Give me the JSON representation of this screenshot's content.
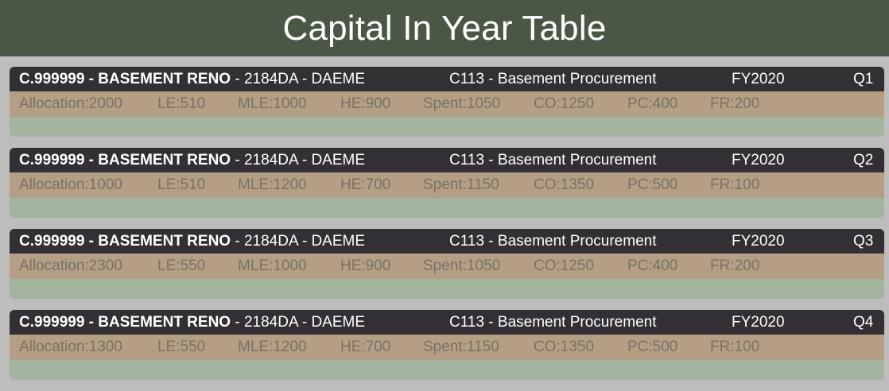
{
  "page": {
    "title": "Capital In Year Table"
  },
  "rows": [
    {
      "code": "C.999999 - BASEMENT RENO",
      "suffix": " - 2184DA - DAEME",
      "procurement": "C113 - Basement Procurement",
      "fy": "FY2020",
      "quarter": "Q1",
      "metrics": [
        "Allocation:2000",
        "LE:510",
        "MLE:1000",
        "HE:900",
        "Spent:1050",
        "CO:1250",
        "PC:400",
        "FR:200"
      ]
    },
    {
      "code": "C.999999 - BASEMENT RENO",
      "suffix": " - 2184DA - DAEME",
      "procurement": "C113 - Basement Procurement",
      "fy": "FY2020",
      "quarter": "Q2",
      "metrics": [
        "Allocation:1000",
        "LE:510",
        "MLE:1200",
        "HE:700",
        "Spent:1150",
        "CO:1350",
        "PC:500",
        "FR:100"
      ]
    },
    {
      "code": "C.999999 - BASEMENT RENO",
      "suffix": " - 2184DA - DAEME",
      "procurement": "C113 - Basement Procurement",
      "fy": "FY2020",
      "quarter": "Q3",
      "metrics": [
        "Allocation:2300",
        "LE:550",
        "MLE:1000",
        "HE:900",
        "Spent:1050",
        "CO:1250",
        "PC:400",
        "FR:200"
      ]
    },
    {
      "code": "C.999999 - BASEMENT RENO",
      "suffix": " - 2184DA - DAEME",
      "procurement": "C113 - Basement Procurement",
      "fy": "FY2020",
      "quarter": "Q4",
      "metrics": [
        "Allocation:1300",
        "LE:550",
        "MLE:1200",
        "HE:700",
        "Spent:1150",
        "CO:1350",
        "PC:500",
        "FR:100"
      ]
    }
  ],
  "colors": {
    "header_bg": "#4a5744",
    "page_bg": "#bdbdbd",
    "title_bar_bg": "#323034",
    "metrics_bg": "#b59f84",
    "footer_bg": "#a3b49f",
    "metrics_text": "#7c7165"
  }
}
